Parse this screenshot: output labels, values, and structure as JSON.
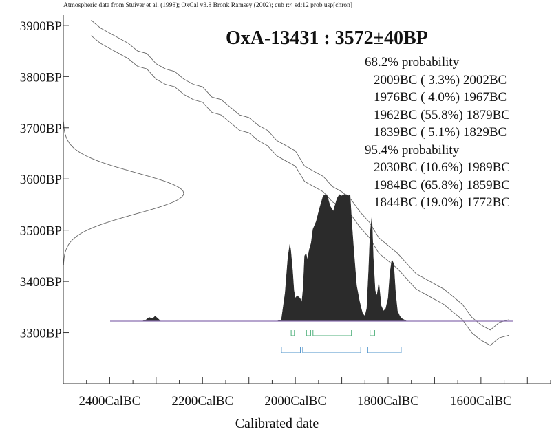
{
  "header": {
    "credit": "Atmospheric data from Stuiver et al. (1998); OxCal v3.8 Bronk Ramsey (2002); cub r:4 sd:12 prob usp[chron]"
  },
  "sample": {
    "title": "OxA-13431 : 3572±40BP"
  },
  "ranges": {
    "p68_label": "68.2% probability",
    "p68": [
      "2009BC ( 3.3%) 2002BC",
      "1976BC ( 4.0%) 1967BC",
      "1962BC (55.8%) 1879BC",
      "1839BC ( 5.1%) 1829BC"
    ],
    "p95_label": "95.4% probability",
    "p95": [
      "2030BC (10.6%) 1989BC",
      "1984BC (65.8%) 1859BC",
      "1844BC (19.0%) 1772BC"
    ]
  },
  "colors": {
    "distribution_fill": "#2b2b2b",
    "curve_line": "#666666",
    "axis": "#333333",
    "baseline": "#8a6fb0",
    "range_68": "#4caf7a",
    "range_95": "#4a90c8"
  },
  "chart_data": {
    "type": "area",
    "xlabel": "Calibrated date",
    "x_tick_labels": [
      "2400CalBC",
      "2200CalBC",
      "2000CalBC",
      "1800CalBC",
      "1600CalBC"
    ],
    "y_tick_labels": [
      "3900BP",
      "3800BP",
      "3700BP",
      "3600BP",
      "3500BP",
      "3400BP",
      "3300BP"
    ],
    "x_ticks": [
      2400,
      2200,
      2000,
      1800,
      1600
    ],
    "y_ticks": [
      3900,
      3800,
      3700,
      3600,
      3500,
      3400,
      3300
    ],
    "xlim": [
      2500,
      1450
    ],
    "ylim": [
      3200,
      3920
    ],
    "measurement": {
      "bp": 3572,
      "sd": 40
    },
    "calibration_curve": {
      "x": [
        2440,
        2420,
        2400,
        2380,
        2360,
        2340,
        2320,
        2300,
        2280,
        2260,
        2240,
        2220,
        2200,
        2180,
        2160,
        2140,
        2120,
        2100,
        2080,
        2060,
        2040,
        2020,
        2000,
        1980,
        1960,
        1940,
        1920,
        1900,
        1880,
        1860,
        1840,
        1820,
        1800,
        1780,
        1760,
        1740,
        1720,
        1700,
        1680,
        1660,
        1640,
        1620,
        1600,
        1580,
        1560,
        1540
      ],
      "y": [
        3895,
        3880,
        3870,
        3860,
        3850,
        3835,
        3830,
        3810,
        3800,
        3795,
        3780,
        3770,
        3765,
        3745,
        3740,
        3725,
        3710,
        3705,
        3690,
        3680,
        3660,
        3650,
        3640,
        3610,
        3600,
        3590,
        3570,
        3560,
        3545,
        3520,
        3500,
        3470,
        3455,
        3440,
        3420,
        3400,
        3390,
        3380,
        3370,
        3355,
        3340,
        3315,
        3300,
        3290,
        3305,
        3310
      ],
      "band": 15
    },
    "calibrated_distribution": {
      "x": [
        2330,
        2322,
        2315,
        2308,
        2302,
        2296,
        2290,
        2040,
        2030,
        2022,
        2016,
        2012,
        2010,
        2006,
        2003,
        2000,
        1996,
        1990,
        1986,
        1983,
        1980,
        1977,
        1974,
        1970,
        1966,
        1962,
        1955,
        1948,
        1940,
        1932,
        1925,
        1918,
        1910,
        1905,
        1900,
        1895,
        1890,
        1886,
        1882,
        1878,
        1874,
        1868,
        1862,
        1858,
        1855,
        1850,
        1846,
        1842,
        1839,
        1835,
        1832,
        1828,
        1824,
        1820,
        1815,
        1810,
        1805,
        1800,
        1796,
        1792,
        1788,
        1784,
        1780,
        1775,
        1770,
        1760,
        1740
      ],
      "y": [
        0,
        0.01,
        0.03,
        0.02,
        0.04,
        0.02,
        0,
        0,
        0.01,
        0.22,
        0.5,
        0.6,
        0.56,
        0.4,
        0.24,
        0.18,
        0.2,
        0.18,
        0.15,
        0.26,
        0.51,
        0.53,
        0.48,
        0.56,
        0.61,
        0.72,
        0.78,
        0.88,
        0.98,
        0.99,
        0.9,
        0.86,
        0.96,
        0.99,
        0.98,
        0.99,
        0.99,
        0.98,
        0.99,
        0.75,
        0.55,
        0.28,
        0.16,
        0.1,
        0.06,
        0.04,
        0.1,
        0.4,
        0.68,
        0.82,
        0.5,
        0.24,
        0.2,
        0.3,
        0.12,
        0.08,
        0.1,
        0.18,
        0.38,
        0.48,
        0.45,
        0.22,
        0.08,
        0.04,
        0.02,
        0,
        0
      ]
    },
    "range_bars_68": [
      [
        2009,
        2002
      ],
      [
        1976,
        1967
      ],
      [
        1962,
        1879
      ],
      [
        1839,
        1829
      ]
    ],
    "range_bars_95": [
      [
        2030,
        1989
      ],
      [
        1984,
        1859
      ],
      [
        1844,
        1772
      ]
    ]
  }
}
